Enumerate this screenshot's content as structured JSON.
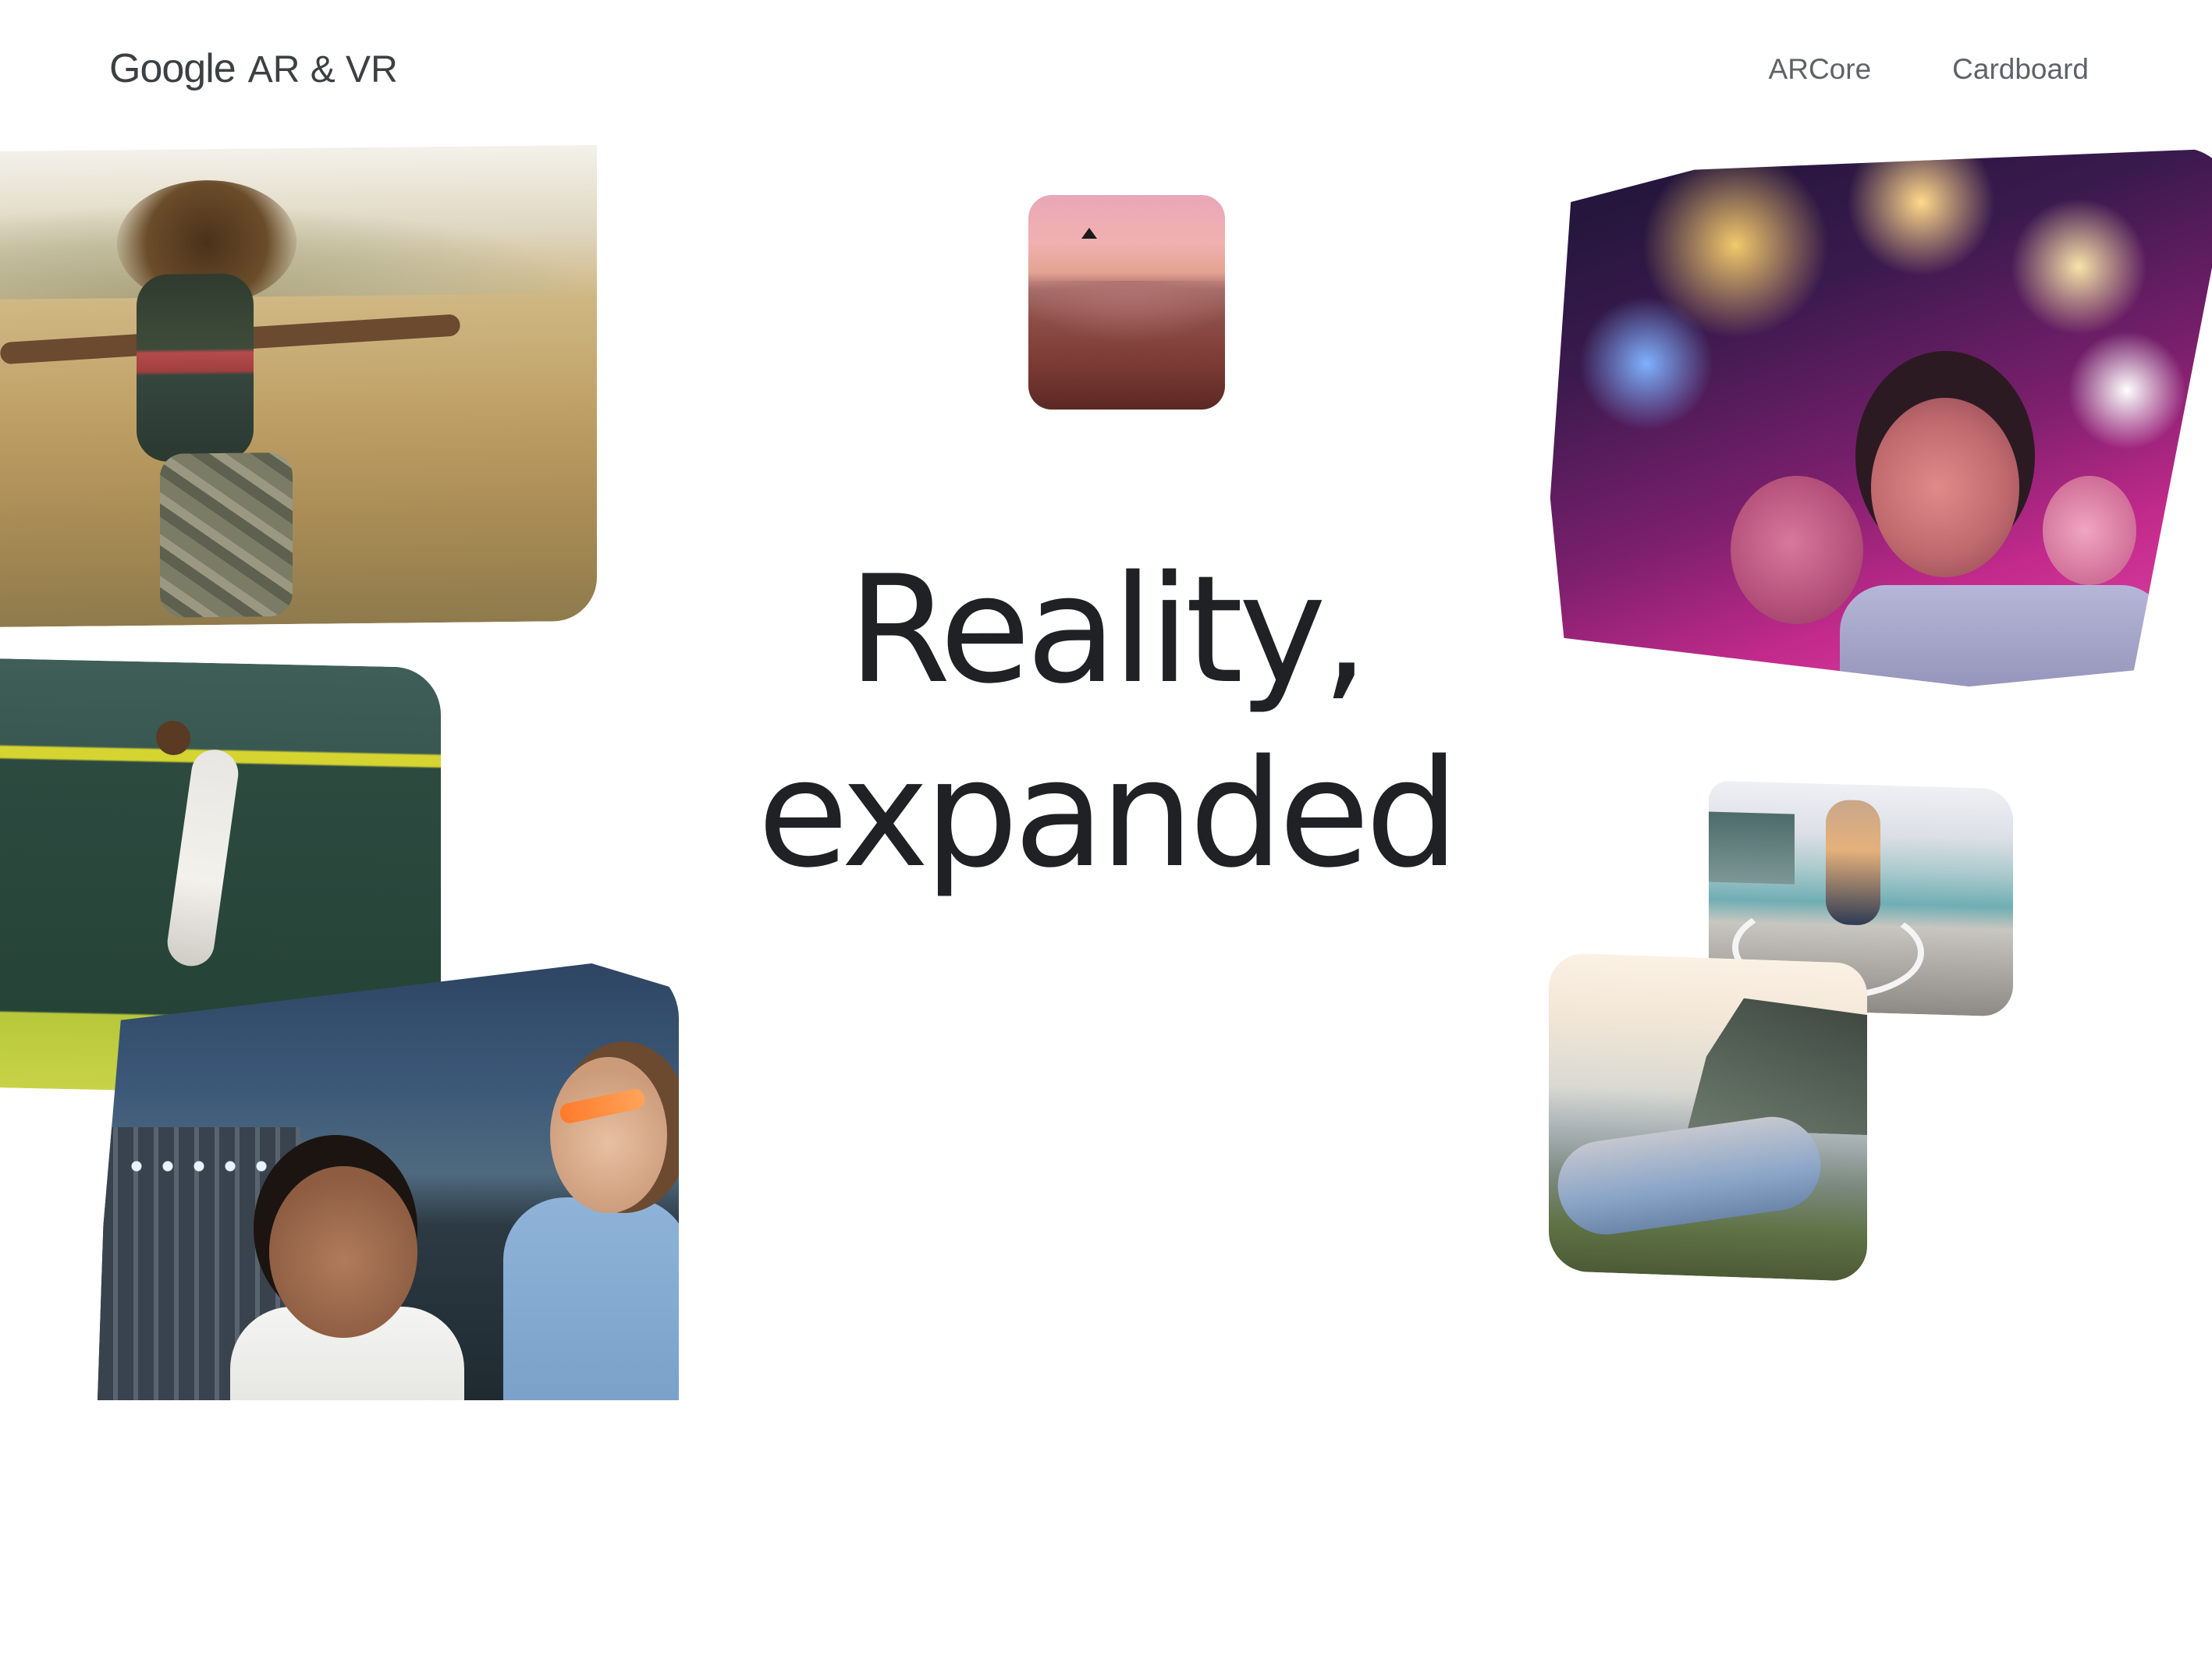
{
  "header": {
    "brand": {
      "google": "Google",
      "product": "AR & VR"
    },
    "nav": [
      {
        "label": "ARCore"
      },
      {
        "label": "Cardboard"
      }
    ]
  },
  "hero": {
    "line1": "Reality,",
    "line2": "expanded"
  },
  "photos": [
    {
      "name": "photo-field-walker"
    },
    {
      "name": "photo-grand-canyon"
    },
    {
      "name": "photo-fireworks-selfie"
    },
    {
      "name": "photo-baseball-catch"
    },
    {
      "name": "photo-concert-friends"
    },
    {
      "name": "photo-boardwalk-rider"
    },
    {
      "name": "photo-cliff-viewers"
    }
  ],
  "colors": {
    "background": "#ffffff",
    "text_primary": "#202124",
    "text_secondary": "#5f6368"
  }
}
